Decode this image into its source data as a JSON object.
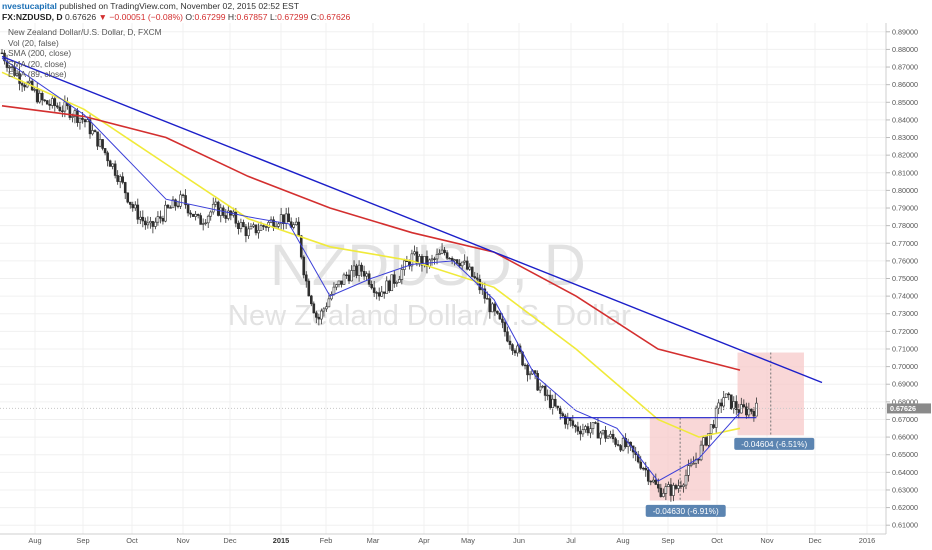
{
  "header": {
    "author": "nvestucapital",
    "published": "published on TradingView.com, November 02, 2015 02:52 EST",
    "symbol": "FX:NZDUSD, D",
    "last": "0.67626",
    "change": "▼ −0.00051 (−0.08%)",
    "o_label": "O:",
    "o_value": "0.67299",
    "h_label": "H:",
    "h_value": "0.67857",
    "l_label": "L:",
    "l_value": "0.67299",
    "c_label": "C:",
    "c_value": "0.67626"
  },
  "legend": {
    "title": "New Zealand Dollar/U.S. Dollar, D, FXCM",
    "vol": "Vol (20, false)",
    "ma1": "SMA (200, close)",
    "ma2": "SMA (20, close)",
    "ma3": "EMA (89, close)"
  },
  "watermark": {
    "symbol": "NZDUSD, D",
    "name": "New Zealand Dollar/U.S. Dollar"
  },
  "measures": [
    {
      "label": "-0.04630 (-6.91%)"
    },
    {
      "label": "-0.04604 (-6.51%)"
    }
  ],
  "colors": {
    "up": "#2e2e2e",
    "down": "#2e2e2e",
    "sma200": "#d32f2f",
    "ema89": "#f0ea3a",
    "sma20": "#3b3fd8",
    "trendline": "#1c1fc9",
    "measure_fill": "#f7c9c9",
    "measure_label": "#5b84b1",
    "price_label": "#8a8a8a"
  },
  "chart_data": {
    "type": "candlestick",
    "title": "New Zealand Dollar/U.S. Dollar, D, FXCM",
    "ylim": [
      0.605,
      0.895
    ],
    "y_ticks": [
      "0.89000",
      "0.88000",
      "0.87000",
      "0.86000",
      "0.85000",
      "0.84000",
      "0.83000",
      "0.82000",
      "0.81000",
      "0.80000",
      "0.79000",
      "0.78000",
      "0.77000",
      "0.76000",
      "0.75000",
      "0.74000",
      "0.73000",
      "0.72000",
      "0.71000",
      "0.70000",
      "0.69000",
      "0.68000",
      "0.67000",
      "0.66000",
      "0.65000",
      "0.64000",
      "0.63000",
      "0.62000",
      "0.61000"
    ],
    "x_ticks": [
      {
        "label": "Aug",
        "bold": false
      },
      {
        "label": "Sep",
        "bold": false
      },
      {
        "label": "Oct",
        "bold": false
      },
      {
        "label": "Nov",
        "bold": false
      },
      {
        "label": "Dec",
        "bold": false
      },
      {
        "label": "2015",
        "bold": true
      },
      {
        "label": "Feb",
        "bold": false
      },
      {
        "label": "Mar",
        "bold": false
      },
      {
        "label": "Apr",
        "bold": false
      },
      {
        "label": "May",
        "bold": false
      },
      {
        "label": "Jun",
        "bold": false
      },
      {
        "label": "Jul",
        "bold": false
      },
      {
        "label": "Aug",
        "bold": false
      },
      {
        "label": "Sep",
        "bold": false
      },
      {
        "label": "Oct",
        "bold": false
      },
      {
        "label": "Nov",
        "bold": false
      },
      {
        "label": "Dec",
        "bold": false
      },
      {
        "label": "2016",
        "bold": false
      }
    ],
    "last_price": "0.67626",
    "price_path": [
      [
        0,
        0.878
      ],
      [
        0.01,
        0.87
      ],
      [
        0.03,
        0.86
      ],
      [
        0.05,
        0.85
      ],
      [
        0.08,
        0.846
      ],
      [
        0.1,
        0.84
      ],
      [
        0.12,
        0.826
      ],
      [
        0.14,
        0.81
      ],
      [
        0.16,
        0.79
      ],
      [
        0.18,
        0.778
      ],
      [
        0.2,
        0.788
      ],
      [
        0.22,
        0.795
      ],
      [
        0.24,
        0.782
      ],
      [
        0.26,
        0.79
      ],
      [
        0.28,
        0.785
      ],
      [
        0.3,
        0.776
      ],
      [
        0.32,
        0.78
      ],
      [
        0.34,
        0.785
      ],
      [
        0.36,
        0.778
      ],
      [
        0.37,
        0.75
      ],
      [
        0.385,
        0.726
      ],
      [
        0.4,
        0.74
      ],
      [
        0.42,
        0.752
      ],
      [
        0.44,
        0.755
      ],
      [
        0.46,
        0.742
      ],
      [
        0.48,
        0.75
      ],
      [
        0.5,
        0.762
      ],
      [
        0.52,
        0.758
      ],
      [
        0.54,
        0.765
      ],
      [
        0.56,
        0.76
      ],
      [
        0.58,
        0.747
      ],
      [
        0.6,
        0.73
      ],
      [
        0.62,
        0.715
      ],
      [
        0.64,
        0.7
      ],
      [
        0.66,
        0.685
      ],
      [
        0.68,
        0.673
      ],
      [
        0.7,
        0.665
      ],
      [
        0.72,
        0.665
      ],
      [
        0.74,
        0.66
      ],
      [
        0.76,
        0.655
      ],
      [
        0.78,
        0.645
      ],
      [
        0.8,
        0.63
      ],
      [
        0.82,
        0.63
      ],
      [
        0.84,
        0.642
      ],
      [
        0.86,
        0.66
      ],
      [
        0.88,
        0.683
      ],
      [
        0.9,
        0.675
      ],
      [
        0.92,
        0.676
      ]
    ],
    "sma200_path": [
      [
        0,
        0.848
      ],
      [
        0.1,
        0.842
      ],
      [
        0.2,
        0.83
      ],
      [
        0.3,
        0.808
      ],
      [
        0.4,
        0.79
      ],
      [
        0.5,
        0.776
      ],
      [
        0.6,
        0.765
      ],
      [
        0.7,
        0.74
      ],
      [
        0.8,
        0.71
      ],
      [
        0.9,
        0.698
      ]
    ],
    "ema89_path": [
      [
        0,
        0.867
      ],
      [
        0.1,
        0.846
      ],
      [
        0.2,
        0.815
      ],
      [
        0.3,
        0.784
      ],
      [
        0.4,
        0.768
      ],
      [
        0.5,
        0.76
      ],
      [
        0.6,
        0.745
      ],
      [
        0.7,
        0.71
      ],
      [
        0.8,
        0.67
      ],
      [
        0.85,
        0.66
      ],
      [
        0.9,
        0.665
      ]
    ],
    "sma20_path": [
      [
        0,
        0.875
      ],
      [
        0.1,
        0.843
      ],
      [
        0.2,
        0.795
      ],
      [
        0.3,
        0.785
      ],
      [
        0.35,
        0.781
      ],
      [
        0.4,
        0.74
      ],
      [
        0.45,
        0.75
      ],
      [
        0.5,
        0.758
      ],
      [
        0.55,
        0.76
      ],
      [
        0.6,
        0.738
      ],
      [
        0.65,
        0.695
      ],
      [
        0.7,
        0.675
      ],
      [
        0.75,
        0.665
      ],
      [
        0.8,
        0.635
      ],
      [
        0.85,
        0.648
      ],
      [
        0.9,
        0.674
      ]
    ],
    "trendline": [
      [
        0.0,
        0.876
      ],
      [
        1.0,
        0.691
      ]
    ],
    "support": [
      [
        0.68,
        0.671
      ],
      [
        0.92,
        0.671
      ]
    ]
  }
}
